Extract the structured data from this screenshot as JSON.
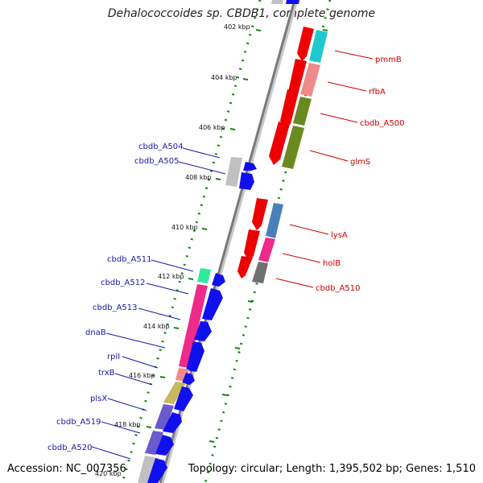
{
  "title": "Dehalococcoides sp. CBDB1, complete genome",
  "footer": {
    "accession": "Accession: NC_007356",
    "summary": "Topology: circular; Length: 1,395,502 bp; Genes: 1,510"
  },
  "ticks": [
    {
      "label": "402 kbp",
      "pos": 0
    },
    {
      "label": "404 kbp",
      "pos": 2
    },
    {
      "label": "406 kbp",
      "pos": 4
    },
    {
      "label": "408 kbp",
      "pos": 6
    },
    {
      "label": "410 kbp",
      "pos": 8
    },
    {
      "label": "412 kbp",
      "pos": 10
    },
    {
      "label": "414 kbp",
      "pos": 12
    },
    {
      "label": "416 kbp",
      "pos": 14
    },
    {
      "label": "418 kbp",
      "pos": 16
    },
    {
      "label": "420 kbp",
      "pos": 18
    }
  ],
  "genes_right": [
    {
      "label": "pmmB"
    },
    {
      "label": "rfbA"
    },
    {
      "label": "cbdb_A500"
    },
    {
      "label": "glmS"
    },
    {
      "label": "lysA"
    },
    {
      "label": "holB"
    },
    {
      "label": "cbdb_A510"
    }
  ],
  "genes_left": [
    {
      "label": "cbdb_A504"
    },
    {
      "label": "cbdb_A505"
    },
    {
      "label": "cbdb_A511"
    },
    {
      "label": "cbdb_A512"
    },
    {
      "label": "cbdb_A513"
    },
    {
      "label": "dnaB"
    },
    {
      "label": "rplI"
    },
    {
      "label": "trxB"
    },
    {
      "label": "plsX"
    },
    {
      "label": "cbdb_A519"
    },
    {
      "label": "cbdb_A520"
    }
  ],
  "colors": {
    "cds": "#ee0000",
    "cds_blue": "#1010ee",
    "cyan": "#20c8d0",
    "salmon": "#f08a8a",
    "olive": "#6a8a20",
    "steel": "#4a80b8",
    "magenta": "#ee2a8a",
    "gray": "#707070",
    "mint": "#30e8a0",
    "khaki": "#c8b860",
    "purple": "#6a5acd",
    "lightgray": "#c0c0c0",
    "dots": "#118811",
    "ticks": "#118811",
    "backbone": "#808080",
    "label_red": "#cc0000",
    "label_blue": "#1a1aa8"
  }
}
